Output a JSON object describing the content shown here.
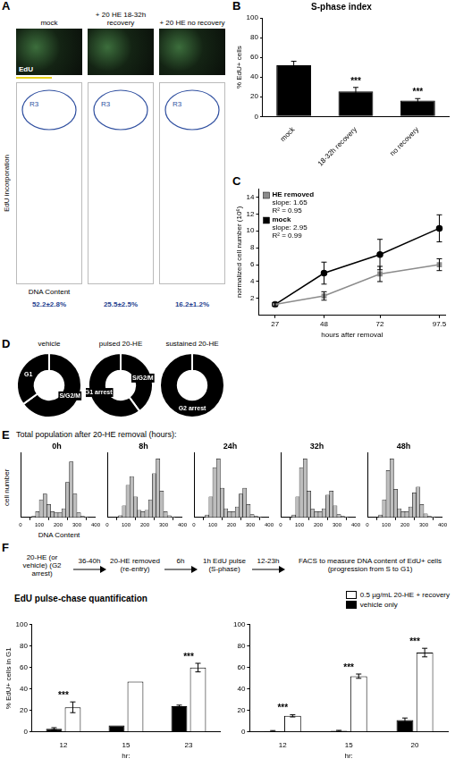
{
  "panel_A": {
    "panel": "A",
    "columns": [
      {
        "title": "mock",
        "percent": "52.2±2.8%"
      },
      {
        "title": "+ 20 HE 18-32h recovery",
        "percent": "25.5±2.5%"
      },
      {
        "title": "+ 20 HE no recovery",
        "percent": "16.2±1.2%"
      }
    ],
    "image_label": "EdU",
    "gate_label": "R3",
    "y_label": "EdU incorporation",
    "x_label": "DNA Content"
  },
  "panel_E": {
    "panel": "E",
    "title": "Total population after 20-HE removal (hours):",
    "x_label": "DNA Content",
    "y_label": "cell number"
  },
  "panel_F": {
    "panel": "F",
    "steps": [
      "20-HE (or vehicle) (G2 arrest)",
      "20-HE removed (re-entry)",
      "1h EdU pulse (S-phase)",
      "FACS to measure DNA content of EdU+ cells (progression from S to G1)"
    ],
    "intervals": [
      "36-40h",
      "6h",
      "12-23h"
    ],
    "title": "EdU pulse-chase quantification"
  },
  "chart_data": [
    {
      "panel": "B",
      "type": "bar",
      "title": "S-phase index",
      "y_label": "% EdU+ cells",
      "categories": [
        "mock",
        "18-32h recovery",
        "no recovery"
      ],
      "values": [
        52,
        25.5,
        16.2
      ],
      "errors": [
        4,
        4,
        2
      ],
      "color": "#000000",
      "ylim": [
        0,
        100
      ],
      "yticks": [
        0,
        20,
        40,
        60,
        80,
        100
      ],
      "annotations": [
        {
          "text": "***",
          "category": "18-32h recovery"
        },
        {
          "text": "***",
          "category": "no recovery"
        }
      ]
    },
    {
      "panel": "C",
      "type": "line",
      "x_label": "hours after removal",
      "y_label": "normalized cell number (10⁶)",
      "x": [
        27,
        48,
        72,
        97.5
      ],
      "xlim": [
        20,
        100
      ],
      "xticks": [
        27,
        48,
        72,
        97.5
      ],
      "ylim": [
        0,
        15
      ],
      "yticks": [
        2,
        4,
        6,
        8,
        10,
        12,
        14
      ],
      "series": [
        {
          "name": "HE removed",
          "color": "#8c8c8c",
          "marker": "square",
          "line_style": "solid",
          "values": [
            1.3,
            2.3,
            4.9,
            6.0
          ],
          "errors": [
            0.2,
            0.5,
            0.9,
            0.7
          ],
          "annotations": [
            "slope: 1.65",
            "R² = 0.95"
          ]
        },
        {
          "name": "mock",
          "color": "#000000",
          "marker": "circle",
          "line_style": "solid",
          "values": [
            1.3,
            5.0,
            7.2,
            10.3
          ],
          "errors": [
            0.2,
            1.3,
            1.8,
            1.6
          ],
          "annotations": [
            "slope: 2.95",
            "R² = 0.99"
          ]
        }
      ]
    },
    {
      "panel": "D",
      "type": "doughnut",
      "title": "vehicle",
      "categories": [
        "S/G2/M",
        "G1"
      ],
      "values": [
        65,
        35
      ],
      "colors": [
        "#000000",
        "#000000"
      ]
    },
    {
      "type": "doughnut",
      "title": "pulsed 20-HE",
      "categories": [
        "S/G2/M",
        "G1 arrest"
      ],
      "values": [
        40,
        60
      ],
      "colors": [
        "#000000",
        "#000000"
      ]
    },
    {
      "type": "doughnut",
      "title": "sustained 20-HE",
      "categories": [
        "G2 arrest"
      ],
      "values": [
        100
      ],
      "colors": [
        "#000000"
      ]
    },
    {
      "type": "histogram",
      "title": "0h",
      "bins": [
        60,
        80,
        100,
        120,
        140,
        160,
        180,
        200,
        220,
        240,
        260,
        280,
        300,
        320,
        340,
        360
      ],
      "values": [
        2,
        10,
        30,
        40,
        22,
        10,
        8,
        8,
        15,
        60,
        95,
        40,
        8,
        2,
        1
      ],
      "color": "#bdbdbd",
      "xlim": [
        0,
        400
      ],
      "xticks": [
        0,
        100,
        200,
        300,
        400
      ],
      "ylim": [
        0,
        110
      ],
      "tick_labels": "x"
    },
    {
      "type": "histogram",
      "title": "8h",
      "bins": [
        60,
        80,
        100,
        120,
        140,
        160,
        180,
        200,
        220,
        240,
        260,
        280,
        300,
        320,
        340,
        360
      ],
      "values": [
        3,
        20,
        55,
        70,
        35,
        12,
        10,
        12,
        30,
        75,
        100,
        45,
        10,
        3,
        1
      ],
      "color": "#bdbdbd",
      "xlim": [
        0,
        400
      ],
      "xticks": [
        0,
        100,
        200,
        300,
        400
      ],
      "ylim": [
        0,
        110
      ],
      "tick_labels": "x"
    },
    {
      "type": "histogram",
      "title": "24h",
      "bins": [
        60,
        80,
        100,
        120,
        140,
        160,
        180,
        200,
        220,
        240,
        260,
        280,
        300,
        320,
        340,
        360
      ],
      "values": [
        4,
        35,
        85,
        100,
        50,
        15,
        10,
        10,
        18,
        40,
        50,
        22,
        5,
        2,
        1
      ],
      "color": "#bdbdbd",
      "xlim": [
        0,
        400
      ],
      "xticks": [
        0,
        100,
        200,
        300,
        400
      ],
      "ylim": [
        0,
        110
      ],
      "tick_labels": "x"
    },
    {
      "type": "histogram",
      "title": "32h",
      "bins": [
        60,
        80,
        100,
        120,
        140,
        160,
        180,
        200,
        220,
        240,
        260,
        280,
        300,
        320,
        340,
        360
      ],
      "values": [
        4,
        35,
        85,
        100,
        45,
        14,
        10,
        10,
        15,
        38,
        45,
        20,
        5,
        2,
        1
      ],
      "color": "#bdbdbd",
      "xlim": [
        0,
        400
      ],
      "xticks": [
        0,
        100,
        200,
        300,
        400
      ],
      "ylim": [
        0,
        110
      ],
      "tick_labels": "x"
    },
    {
      "type": "histogram",
      "title": "48h",
      "bins": [
        60,
        80,
        100,
        120,
        140,
        160,
        180,
        200,
        220,
        240,
        260,
        280,
        300,
        320,
        340,
        360
      ],
      "values": [
        4,
        30,
        80,
        100,
        48,
        15,
        10,
        10,
        18,
        42,
        52,
        22,
        6,
        2,
        1
      ],
      "color": "#bdbdbd",
      "xlim": [
        0,
        400
      ],
      "xticks": [
        0,
        100,
        200,
        300,
        400
      ],
      "ylim": [
        0,
        110
      ],
      "tick_labels": "x"
    },
    {
      "type": "bar",
      "y_label": "% EdU+ cells in G1",
      "x_label": "hr:",
      "categories": [
        "12",
        "15",
        "23"
      ],
      "ylim": [
        0,
        100
      ],
      "yticks": [
        0,
        20,
        40,
        60,
        80,
        100
      ],
      "legend": "top right",
      "series": [
        {
          "name": "vehicle only",
          "color": "#000000",
          "values": [
            3,
            6,
            24
          ],
          "errors": [
            1,
            null,
            1
          ]
        },
        {
          "name": "0.5 µg/mL 20-HE + recovery",
          "color": "#ffffff",
          "values": [
            23,
            47,
            60
          ],
          "errors": [
            5,
            null,
            4
          ]
        }
      ],
      "annotations": [
        {
          "text": "***",
          "category": "12"
        },
        {
          "text": "***",
          "category": "23"
        }
      ]
    },
    {
      "type": "bar",
      "x_label": "hr:",
      "categories": [
        "12",
        "15",
        "20"
      ],
      "ylim": [
        0,
        100
      ],
      "yticks": [
        0,
        20,
        40,
        60,
        80,
        100
      ],
      "series": [
        {
          "name": "vehicle only",
          "color": "#000000",
          "values": [
            0.8,
            1,
            11
          ],
          "errors": [
            0.5,
            0.5,
            2
          ]
        },
        {
          "name": "0.5 µg/mL 20-HE + recovery",
          "color": "#ffffff",
          "values": [
            15,
            52,
            74
          ],
          "errors": [
            1,
            2,
            4
          ]
        }
      ],
      "annotations": [
        {
          "text": "***",
          "category": "12"
        },
        {
          "text": "***",
          "category": "15"
        },
        {
          "text": "***",
          "category": "20"
        }
      ]
    }
  ]
}
